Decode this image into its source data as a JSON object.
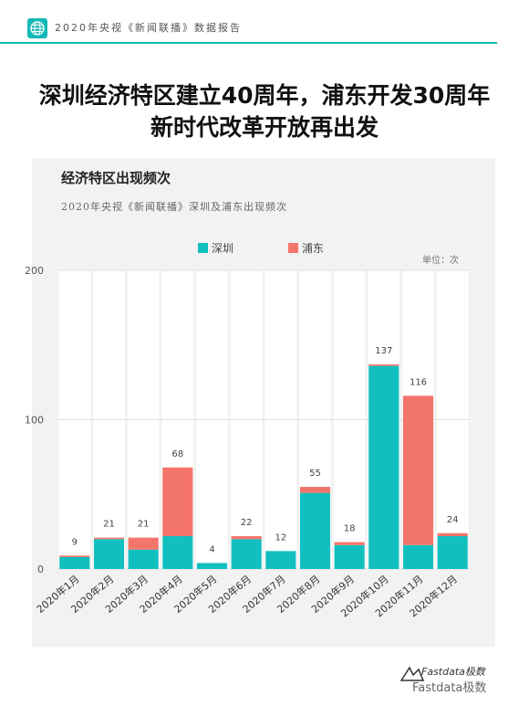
{
  "header": {
    "title": "2020年央视《新闻联播》数据报告",
    "accent": "#15b8b6"
  },
  "title": {
    "line1": "深圳经济特区建立40周年，浦东开发30周年",
    "line2": "新时代改革开放再出发"
  },
  "chart_data": {
    "type": "bar",
    "stacked": true,
    "title": "经济特区出现频次",
    "subtitle": "2020年央视《新闻联播》深圳及浦东出现频次",
    "unit": "单位：次",
    "categories": [
      "2020年1月",
      "2020年2月",
      "2020年3月",
      "2020年4月",
      "2020年5月",
      "2020年6月",
      "2020年7月",
      "2020年8月",
      "2020年9月",
      "2020年10月",
      "2020年11月",
      "2020年12月"
    ],
    "series": [
      {
        "name": "深圳",
        "color": "#12bfbf",
        "values": [
          8,
          20,
          13,
          22,
          4,
          20,
          12,
          51,
          16,
          136,
          16,
          22
        ]
      },
      {
        "name": "浦东",
        "color": "#f4756b",
        "values": [
          1,
          1,
          8,
          46,
          0,
          2,
          0,
          4,
          2,
          1,
          100,
          2
        ]
      }
    ],
    "totals": [
      9,
      21,
      21,
      68,
      4,
      22,
      12,
      55,
      18,
      137,
      116,
      24
    ],
    "yticks": [
      0,
      100,
      200
    ],
    "ylim": [
      0,
      200
    ],
    "grid": true,
    "legend_position": "top"
  },
  "footer": {
    "brand": "Fastdata极数",
    "wechat": "Fastdata极数"
  }
}
